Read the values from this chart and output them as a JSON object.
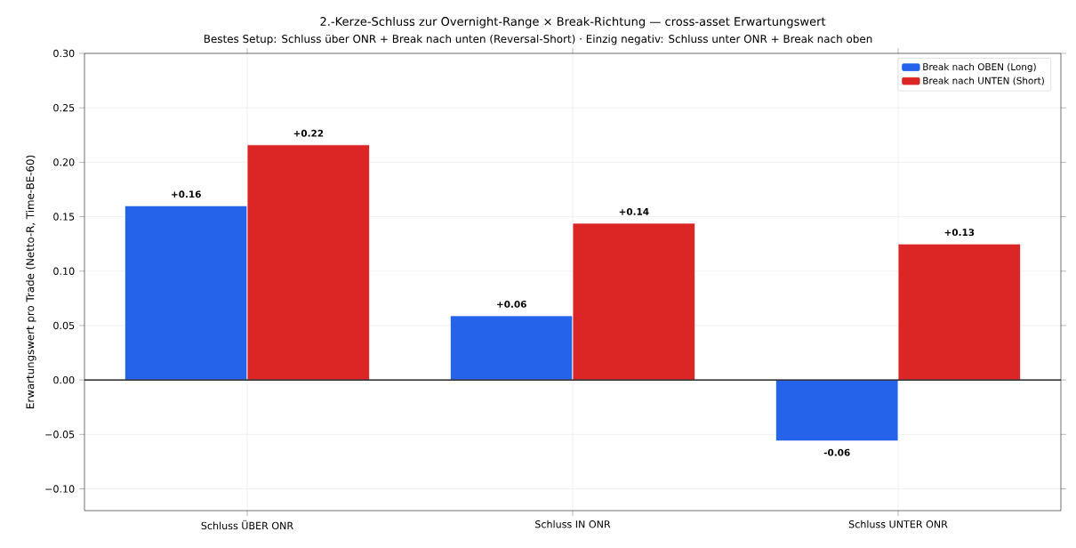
{
  "chart_data": {
    "type": "bar",
    "title": "2.-Kerze-Schluss zur Overnight-Range × Break-Richtung — cross-asset Erwartungswert",
    "subtitle": "Bestes Setup: Schluss über ONR + Break nach unten (Reversal-Short) · Einzig negativ: Schluss unter ONR + Break nach oben",
    "ylabel": "Erwartungswert pro Trade (Netto-R, Time-BE-60)",
    "categories": [
      "Schluss ÜBER ONR",
      "Schluss IN ONR",
      "Schluss UNTER ONR"
    ],
    "series": [
      {
        "name": "Break nach OBEN (Long)",
        "color": "#2563eb",
        "values": [
          0.16,
          0.059,
          -0.056
        ],
        "value_labels": [
          "+0.16",
          "+0.06",
          "-0.06"
        ]
      },
      {
        "name": "Break nach UNTEN (Short)",
        "color": "#dc2626",
        "values": [
          0.216,
          0.144,
          0.125
        ],
        "value_labels": [
          "+0.22",
          "+0.14",
          "+0.13"
        ]
      }
    ],
    "ylim": [
      -0.12,
      0.3
    ],
    "yticks": [
      {
        "value": -0.1,
        "label": "−0.10"
      },
      {
        "value": -0.05,
        "label": "−0.05"
      },
      {
        "value": 0,
        "label": "0.00"
      },
      {
        "value": 0.05,
        "label": "0.05"
      },
      {
        "value": 0.1,
        "label": "0.10"
      },
      {
        "value": 0.15,
        "label": "0.15"
      },
      {
        "value": 0.2,
        "label": "0.20"
      },
      {
        "value": 0.25,
        "label": "0.25"
      },
      {
        "value": 0.3,
        "label": "0.30"
      }
    ],
    "ref_lines": [
      {
        "axis": "y",
        "value": 0,
        "color": "#000000"
      }
    ],
    "grid": true,
    "legend": "top right"
  }
}
